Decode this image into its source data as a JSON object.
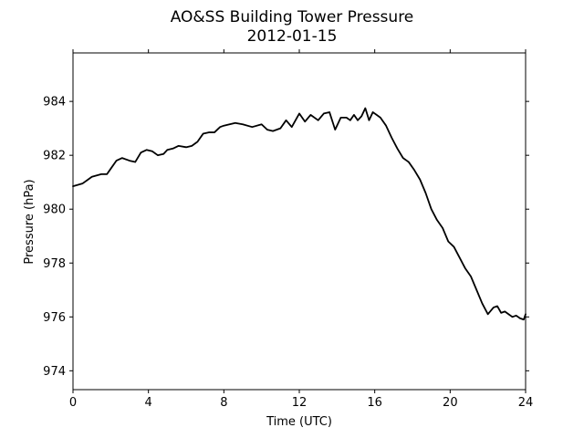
{
  "chart_data": {
    "type": "line",
    "title": "AO&SS Building Tower Pressure",
    "subtitle": "2012-01-15",
    "xlabel": "Time (UTC)",
    "ylabel": "Pressure (hPa)",
    "xlim": [
      0,
      24
    ],
    "ylim": [
      973.3,
      985.8
    ],
    "xticks": [
      0,
      4,
      8,
      12,
      16,
      20,
      24
    ],
    "yticks": [
      974,
      976,
      978,
      980,
      982,
      984
    ],
    "grid": false,
    "line_color": "#000000",
    "series": [
      {
        "x": [
          0,
          0.5,
          0.8,
          1.0,
          1.5,
          1.8,
          2.0,
          2.3,
          2.6,
          3.0,
          3.3,
          3.6,
          3.9,
          4.2,
          4.5,
          4.8,
          5.0,
          5.3,
          5.6,
          6.0,
          6.3,
          6.6,
          6.9,
          7.2,
          7.5,
          7.8,
          8.0,
          8.3,
          8.6,
          9.0,
          9.5,
          10.0,
          10.3,
          10.6,
          11.0,
          11.3,
          11.6,
          12.0,
          12.3,
          12.6,
          13.0,
          13.3,
          13.6,
          13.9,
          14.2,
          14.5,
          14.7,
          14.9,
          15.1,
          15.3,
          15.5,
          15.7,
          15.9,
          16.1,
          16.3,
          16.6,
          16.9,
          17.2,
          17.5,
          17.8,
          18.1,
          18.4,
          18.7,
          19.0,
          19.3,
          19.6,
          19.9,
          20.2,
          20.5,
          20.8,
          21.1,
          21.4,
          21.7,
          22.0,
          22.3,
          22.5,
          22.7,
          22.9,
          23.1,
          23.3,
          23.5,
          23.7,
          23.9,
          24.0
        ],
        "y": [
          980.85,
          980.95,
          981.1,
          981.2,
          981.3,
          981.3,
          981.5,
          981.8,
          981.9,
          981.8,
          981.75,
          982.1,
          982.2,
          982.15,
          982.0,
          982.05,
          982.2,
          982.25,
          982.35,
          982.3,
          982.35,
          982.5,
          982.8,
          982.85,
          982.85,
          983.05,
          983.1,
          983.15,
          983.2,
          983.15,
          983.05,
          983.15,
          982.95,
          982.9,
          983.0,
          983.3,
          983.05,
          983.55,
          983.25,
          983.5,
          983.3,
          983.55,
          983.6,
          982.95,
          983.4,
          983.4,
          983.3,
          983.5,
          983.3,
          983.45,
          983.75,
          983.3,
          983.6,
          983.5,
          983.4,
          983.1,
          982.65,
          982.25,
          981.9,
          981.75,
          981.45,
          981.1,
          980.6,
          980.0,
          979.6,
          979.3,
          978.8,
          978.6,
          978.2,
          977.8,
          977.5,
          977.0,
          976.5,
          976.1,
          976.35,
          976.4,
          976.15,
          976.2,
          976.1,
          976.0,
          976.05,
          975.95,
          975.9,
          976.1
        ]
      }
    ]
  }
}
